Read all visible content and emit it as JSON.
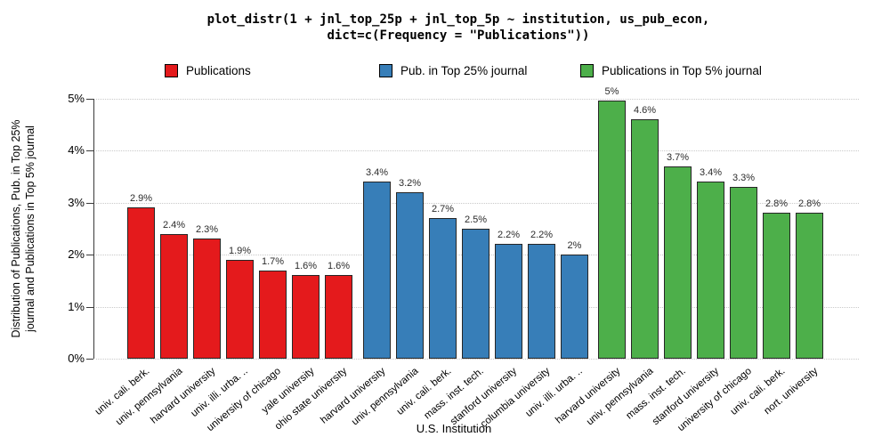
{
  "title": {
    "line1": "plot_distr(1 + jnl_top_25p + jnl_top_5p ~ institution, us_pub_econ,",
    "line2": "dict=c(Frequency = \"Publications\"))"
  },
  "legend": [
    {
      "label": "Publications",
      "color": "#e41a1c"
    },
    {
      "label": "Pub. in Top 25% journal",
      "color": "#377eb8"
    },
    {
      "label": "Publications in Top 5% journal",
      "color": "#4daf4a"
    }
  ],
  "axes": {
    "y_title_line1": "Distribution of Publications, Pub. in Top 25%",
    "y_title_line2": "journal and Publications in Top 5% journal",
    "x_title": "U.S. Institution",
    "y_tick_labels": [
      "0%",
      "1%",
      "2%",
      "3%",
      "4%",
      "5%"
    ]
  },
  "chart_data": {
    "type": "bar",
    "ylabel": "Distribution of Publications, Pub. in Top 25% journal and Publications in Top 5% journal",
    "xlabel": "U.S. Institution",
    "ylim": [
      0,
      5
    ],
    "grid": "horizontal-dotted",
    "legend_position": "top",
    "series": [
      {
        "name": "Publications",
        "color": "#e41a1c",
        "bars": [
          {
            "category": "univ. cali. berk.",
            "value": 2.9,
            "label": "2.9%"
          },
          {
            "category": "univ. pennsylvania",
            "value": 2.4,
            "label": "2.4%"
          },
          {
            "category": "harvard university",
            "value": 2.3,
            "label": "2.3%"
          },
          {
            "category": "univ. illi. urba. ..",
            "value": 1.9,
            "label": "1.9%"
          },
          {
            "category": "university of chicago",
            "value": 1.7,
            "label": "1.7%"
          },
          {
            "category": "yale university",
            "value": 1.6,
            "label": "1.6%"
          },
          {
            "category": "ohio state university",
            "value": 1.6,
            "label": "1.6%"
          }
        ]
      },
      {
        "name": "Pub. in Top 25% journal",
        "color": "#377eb8",
        "bars": [
          {
            "category": "harvard university",
            "value": 3.4,
            "label": "3.4%"
          },
          {
            "category": "univ. pennsylvania",
            "value": 3.2,
            "label": "3.2%"
          },
          {
            "category": "univ. cali. berk.",
            "value": 2.7,
            "label": "2.7%"
          },
          {
            "category": "mass. inst. tech.",
            "value": 2.5,
            "label": "2.5%"
          },
          {
            "category": "stanford university",
            "value": 2.2,
            "label": "2.2%"
          },
          {
            "category": "columbia university",
            "value": 2.2,
            "label": "2.2%"
          },
          {
            "category": "univ. illi. urba. ..",
            "value": 2.0,
            "label": "2%"
          }
        ]
      },
      {
        "name": "Publications in Top 5% journal",
        "color": "#4daf4a",
        "bars": [
          {
            "category": "harvard university",
            "value": 4.95,
            "label": "5%"
          },
          {
            "category": "univ. pennsylvania",
            "value": 4.6,
            "label": "4.6%"
          },
          {
            "category": "mass. inst. tech.",
            "value": 3.7,
            "label": "3.7%"
          },
          {
            "category": "stanford university",
            "value": 3.4,
            "label": "3.4%"
          },
          {
            "category": "university of chicago",
            "value": 3.3,
            "label": "3.3%"
          },
          {
            "category": "univ. cali. berk.",
            "value": 2.8,
            "label": "2.8%"
          },
          {
            "category": "nort. university",
            "value": 2.8,
            "label": "2.8%"
          }
        ]
      }
    ]
  }
}
